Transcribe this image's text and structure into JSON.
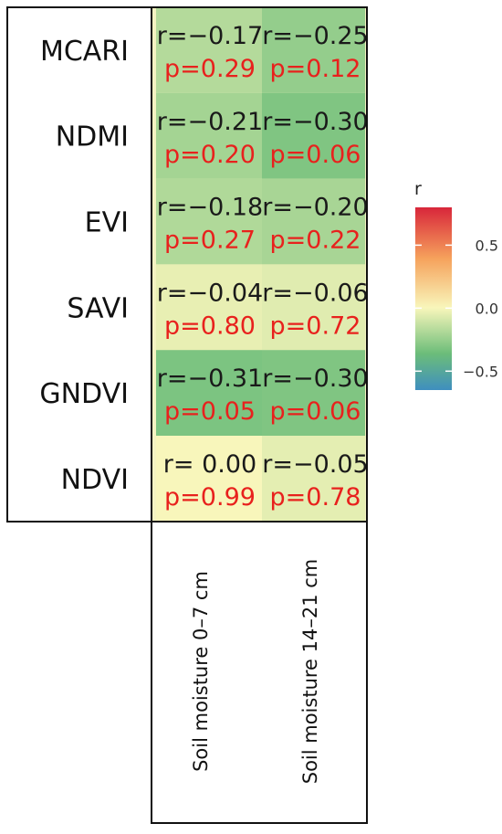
{
  "chart_data": {
    "type": "heatmap",
    "rows": [
      "MCARI",
      "NDMI",
      "EVI",
      "SAVI",
      "GNDVI",
      "NDVI"
    ],
    "columns": [
      "Soil moisture 0–7 cm",
      "Soil moisture 14–21 cm"
    ],
    "cells": [
      [
        {
          "r": "r=−0.17",
          "p": "p=0.29",
          "value": -0.17
        },
        {
          "r": "r=−0.25",
          "p": "p=0.12",
          "value": -0.25
        }
      ],
      [
        {
          "r": "r=−0.21",
          "p": "p=0.20",
          "value": -0.21
        },
        {
          "r": "r=−0.30",
          "p": "p=0.06",
          "value": -0.3
        }
      ],
      [
        {
          "r": "r=−0.18",
          "p": "p=0.27",
          "value": -0.18
        },
        {
          "r": "r=−0.20",
          "p": "p=0.22",
          "value": -0.2
        }
      ],
      [
        {
          "r": "r=−0.04",
          "p": "p=0.80",
          "value": -0.04
        },
        {
          "r": "r=−0.06",
          "p": "p=0.72",
          "value": -0.06
        }
      ],
      [
        {
          "r": "r=−0.31",
          "p": "p=0.05",
          "value": -0.31
        },
        {
          "r": "r=−0.30",
          "p": "p=0.06",
          "value": -0.3
        }
      ],
      [
        {
          "r": "r= 0.00",
          "p": "p=0.99",
          "value": 0.0
        },
        {
          "r": "r=−0.05",
          "p": "p=0.78",
          "value": -0.05
        }
      ]
    ],
    "legend": {
      "title": "r",
      "ticks": [
        {
          "label": "0.5",
          "value": 0.5
        },
        {
          "label": "0.0",
          "value": 0.0
        },
        {
          "label": "−0.5",
          "value": -0.5
        }
      ],
      "range": [
        -0.65,
        0.8
      ],
      "placement": "right"
    },
    "colors": {
      "low": "#3f8fbf",
      "mid_low": "#6cbd79",
      "mid": "#f8f6bb",
      "mid_high": "#f6a25c",
      "high": "#d8263a",
      "p_text": "#e8211d"
    }
  }
}
